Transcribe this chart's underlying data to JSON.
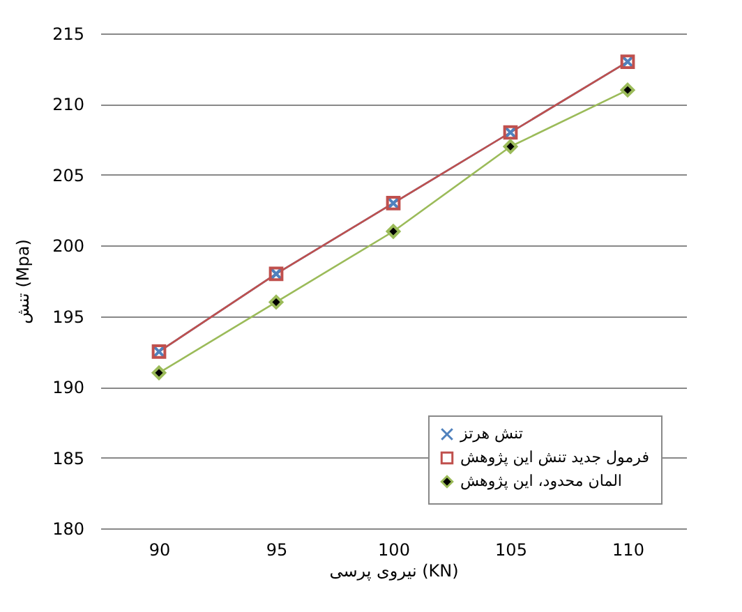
{
  "chart_data": {
    "type": "line",
    "xlabel": "نیروی پرسی (KN)",
    "ylabel": "تنش (Mpa)",
    "categories": [
      "90",
      "95",
      "100",
      "105",
      "110"
    ],
    "series": [
      {
        "name": "تنش هرتز",
        "color": "#4f81bd",
        "marker": "cross",
        "values": [
          192.5,
          198,
          203,
          208,
          213
        ]
      },
      {
        "name": "فرمول جدید تنش این پژوهش",
        "color": "#c0504d",
        "marker": "square",
        "values": [
          192.5,
          198,
          203,
          208,
          213
        ]
      },
      {
        "name": "المان محدود، این پژوهش",
        "color": "#9bbb59",
        "marker": "diamond",
        "values": [
          191,
          196,
          201,
          207,
          211
        ]
      }
    ],
    "ylim": [
      180,
      215
    ],
    "yticks": [
      180,
      185,
      190,
      195,
      200,
      205,
      210,
      215
    ],
    "grid": "y",
    "legend": "bottom right"
  }
}
